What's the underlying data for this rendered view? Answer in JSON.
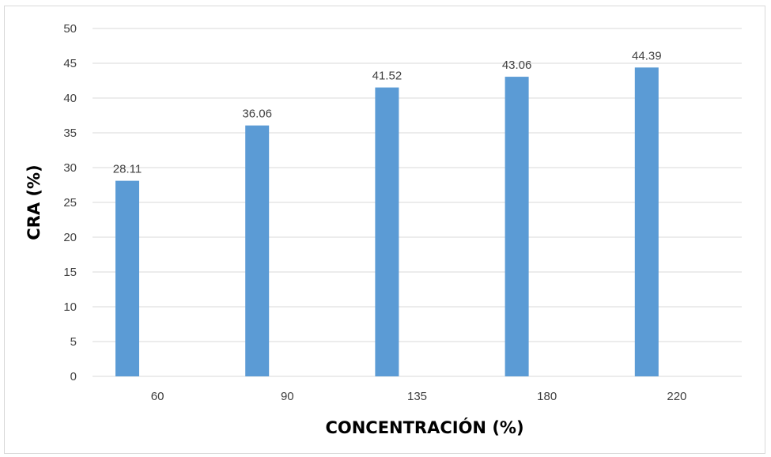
{
  "chart_data": {
    "type": "bar",
    "categories": [
      "60",
      "90",
      "135",
      "180",
      "220"
    ],
    "values": [
      28.11,
      36.06,
      41.52,
      43.06,
      44.39
    ],
    "value_labels": [
      "28.11",
      "36.06",
      "41.52",
      "43.06",
      "44.39"
    ],
    "title": "",
    "xlabel": "CONCENTRACIÓN  (%)",
    "ylabel": "CRA (%)",
    "ylim": [
      0,
      50
    ],
    "yticks": [
      "0",
      "5",
      "10",
      "15",
      "20",
      "25",
      "30",
      "35",
      "40",
      "45",
      "50"
    ],
    "grid": "horizontal",
    "legend": "none",
    "bar_color": "#5b9bd5",
    "grid_color": "#d9d9d9"
  }
}
